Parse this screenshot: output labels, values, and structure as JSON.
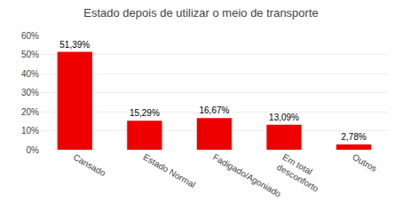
{
  "chart_data": {
    "type": "bar",
    "title": "Estado depois de utilizar o meio de transporte",
    "categories": [
      "Cansado",
      "Estado Normal",
      "Fadigado/Agoniado",
      "Em total\ndesconforto",
      "Outros"
    ],
    "values": [
      51.39,
      15.29,
      16.67,
      13.09,
      2.78
    ],
    "value_labels": [
      "51,39%",
      "15,29%",
      "16,67%",
      "13,09%",
      "2,78%"
    ],
    "data_labels": true,
    "color": "#EE0000",
    "ylim": [
      0,
      60
    ],
    "yticks": [
      {
        "value": 0,
        "label": "0%"
      },
      {
        "value": 10,
        "label": "10%"
      },
      {
        "value": 20,
        "label": "20%"
      },
      {
        "value": 30,
        "label": "30%"
      },
      {
        "value": 40,
        "label": "40%"
      },
      {
        "value": 50,
        "label": "50%"
      },
      {
        "value": 60,
        "label": "60%"
      }
    ],
    "grid": true
  }
}
